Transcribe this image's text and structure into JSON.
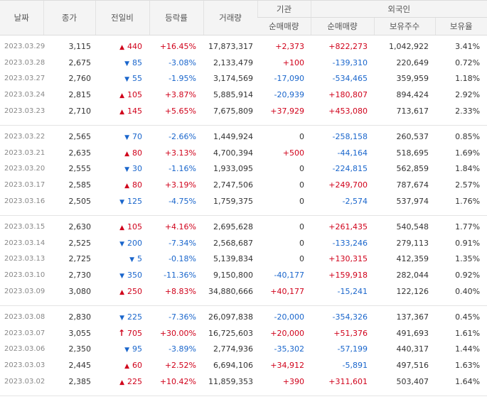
{
  "headers": {
    "date": "날짜",
    "close": "종가",
    "diff": "전일비",
    "rate": "등락률",
    "volume": "거래량",
    "institution": "기관",
    "institution_net": "순매매량",
    "foreign": "외국인",
    "foreign_net": "순매매량",
    "foreign_shares": "보유주수",
    "foreign_ratio": "보유율"
  },
  "colors": {
    "up": "#d0021b",
    "down": "#1a66cc"
  },
  "groups": [
    {
      "rows": [
        {
          "date": "2023.03.29",
          "close": "3,115",
          "dir": "up",
          "diff": "440",
          "rate": "+16.45%",
          "volume": "17,873,317",
          "inst": "+2,373",
          "fnet": "+822,273",
          "fshare": "1,042,922",
          "fratio": "3.41%"
        },
        {
          "date": "2023.03.28",
          "close": "2,675",
          "dir": "down",
          "diff": "85",
          "rate": "-3.08%",
          "volume": "2,133,479",
          "inst": "+100",
          "fnet": "-139,310",
          "fshare": "220,649",
          "fratio": "0.72%"
        },
        {
          "date": "2023.03.27",
          "close": "2,760",
          "dir": "down",
          "diff": "55",
          "rate": "-1.95%",
          "volume": "3,174,569",
          "inst": "-17,090",
          "fnet": "-534,465",
          "fshare": "359,959",
          "fratio": "1.18%"
        },
        {
          "date": "2023.03.24",
          "close": "2,815",
          "dir": "up",
          "diff": "105",
          "rate": "+3.87%",
          "volume": "5,885,914",
          "inst": "-20,939",
          "fnet": "+180,807",
          "fshare": "894,424",
          "fratio": "2.92%"
        },
        {
          "date": "2023.03.23",
          "close": "2,710",
          "dir": "up",
          "diff": "145",
          "rate": "+5.65%",
          "volume": "7,675,809",
          "inst": "+37,929",
          "fnet": "+453,080",
          "fshare": "713,617",
          "fratio": "2.33%"
        }
      ]
    },
    {
      "rows": [
        {
          "date": "2023.03.22",
          "close": "2,565",
          "dir": "down",
          "diff": "70",
          "rate": "-2.66%",
          "volume": "1,449,924",
          "inst": "0",
          "fnet": "-258,158",
          "fshare": "260,537",
          "fratio": "0.85%"
        },
        {
          "date": "2023.03.21",
          "close": "2,635",
          "dir": "up",
          "diff": "80",
          "rate": "+3.13%",
          "volume": "4,700,394",
          "inst": "+500",
          "fnet": "-44,164",
          "fshare": "518,695",
          "fratio": "1.69%"
        },
        {
          "date": "2023.03.20",
          "close": "2,555",
          "dir": "down",
          "diff": "30",
          "rate": "-1.16%",
          "volume": "1,933,095",
          "inst": "0",
          "fnet": "-224,815",
          "fshare": "562,859",
          "fratio": "1.84%"
        },
        {
          "date": "2023.03.17",
          "close": "2,585",
          "dir": "up",
          "diff": "80",
          "rate": "+3.19%",
          "volume": "2,747,506",
          "inst": "0",
          "fnet": "+249,700",
          "fshare": "787,674",
          "fratio": "2.57%"
        },
        {
          "date": "2023.03.16",
          "close": "2,505",
          "dir": "down",
          "diff": "125",
          "rate": "-4.75%",
          "volume": "1,759,375",
          "inst": "0",
          "fnet": "-2,574",
          "fshare": "537,974",
          "fratio": "1.76%"
        }
      ]
    },
    {
      "rows": [
        {
          "date": "2023.03.15",
          "close": "2,630",
          "dir": "up",
          "diff": "105",
          "rate": "+4.16%",
          "volume": "2,695,628",
          "inst": "0",
          "fnet": "+261,435",
          "fshare": "540,548",
          "fratio": "1.77%"
        },
        {
          "date": "2023.03.14",
          "close": "2,525",
          "dir": "down",
          "diff": "200",
          "rate": "-7.34%",
          "volume": "2,568,687",
          "inst": "0",
          "fnet": "-133,246",
          "fshare": "279,113",
          "fratio": "0.91%"
        },
        {
          "date": "2023.03.13",
          "close": "2,725",
          "dir": "down",
          "diff": "5",
          "rate": "-0.18%",
          "volume": "5,139,834",
          "inst": "0",
          "fnet": "+130,315",
          "fshare": "412,359",
          "fratio": "1.35%"
        },
        {
          "date": "2023.03.10",
          "close": "2,730",
          "dir": "down",
          "diff": "350",
          "rate": "-11.36%",
          "volume": "9,150,800",
          "inst": "-40,177",
          "fnet": "+159,918",
          "fshare": "282,044",
          "fratio": "0.92%"
        },
        {
          "date": "2023.03.09",
          "close": "3,080",
          "dir": "up",
          "diff": "250",
          "rate": "+8.83%",
          "volume": "34,880,666",
          "inst": "+40,177",
          "fnet": "-15,241",
          "fshare": "122,126",
          "fratio": "0.40%"
        }
      ]
    },
    {
      "rows": [
        {
          "date": "2023.03.08",
          "close": "2,830",
          "dir": "down",
          "diff": "225",
          "rate": "-7.36%",
          "volume": "26,097,838",
          "inst": "-20,000",
          "fnet": "-354,326",
          "fshare": "137,367",
          "fratio": "0.45%"
        },
        {
          "date": "2023.03.07",
          "close": "3,055",
          "dir": "upper",
          "diff": "705",
          "rate": "+30.00%",
          "volume": "16,725,603",
          "inst": "+20,000",
          "fnet": "+51,376",
          "fshare": "491,693",
          "fratio": "1.61%"
        },
        {
          "date": "2023.03.06",
          "close": "2,350",
          "dir": "down",
          "diff": "95",
          "rate": "-3.89%",
          "volume": "2,774,936",
          "inst": "-35,302",
          "fnet": "-57,199",
          "fshare": "440,317",
          "fratio": "1.44%"
        },
        {
          "date": "2023.03.03",
          "close": "2,445",
          "dir": "up",
          "diff": "60",
          "rate": "+2.52%",
          "volume": "6,694,106",
          "inst": "+34,912",
          "fnet": "-5,891",
          "fshare": "497,516",
          "fratio": "1.63%"
        },
        {
          "date": "2023.03.02",
          "close": "2,385",
          "dir": "up",
          "diff": "225",
          "rate": "+10.42%",
          "volume": "11,859,353",
          "inst": "+390",
          "fnet": "+311,601",
          "fshare": "503,407",
          "fratio": "1.64%"
        }
      ]
    }
  ]
}
